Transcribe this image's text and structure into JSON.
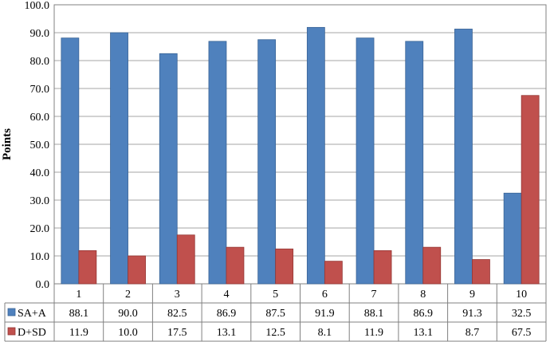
{
  "chart_data": {
    "type": "bar",
    "ylabel": "Points",
    "ylim": [
      0,
      100
    ],
    "yticks": [
      "0.0",
      "10.0",
      "20.0",
      "30.0",
      "40.0",
      "50.0",
      "60.0",
      "70.0",
      "80.0",
      "90.0",
      "100.0"
    ],
    "categories": [
      "1",
      "2",
      "3",
      "4",
      "5",
      "6",
      "7",
      "8",
      "9",
      "10"
    ],
    "grid": true,
    "legend": "data table, left of rows",
    "series": [
      {
        "name": "SA+A",
        "color": "#4F81BD",
        "values": [
          88.1,
          90.0,
          82.5,
          86.9,
          87.5,
          91.9,
          88.1,
          86.9,
          91.3,
          32.5
        ],
        "labels": [
          "88.1",
          "90.0",
          "82.5",
          "86.9",
          "87.5",
          "91.9",
          "88.1",
          "86.9",
          "91.3",
          "32.5"
        ]
      },
      {
        "name": "D+SD",
        "color": "#C0504D",
        "values": [
          11.9,
          10.0,
          17.5,
          13.1,
          12.5,
          8.1,
          11.9,
          13.1,
          8.7,
          67.5
        ],
        "labels": [
          "11.9",
          "10.0",
          "17.5",
          "13.1",
          "12.5",
          "8.1",
          "11.9",
          "13.1",
          "8.7",
          "67.5"
        ]
      }
    ]
  }
}
